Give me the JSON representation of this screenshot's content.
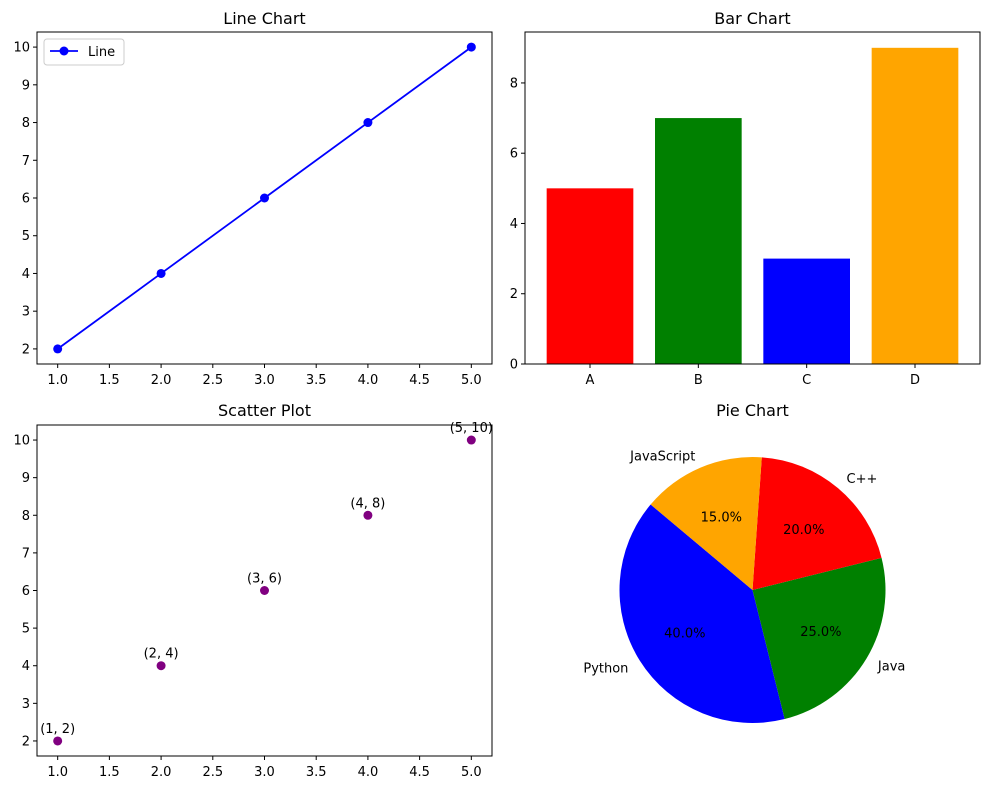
{
  "chart_data": [
    {
      "type": "line",
      "title": "Line Chart",
      "x": [
        1,
        2,
        3,
        4,
        5
      ],
      "series": [
        {
          "name": "Line",
          "values": [
            2,
            4,
            6,
            8,
            10
          ],
          "color": "#0000ff",
          "marker": "circle"
        }
      ],
      "xlabel": "",
      "ylabel": "",
      "xlim": [
        0.8,
        5.2
      ],
      "ylim": [
        1.6,
        10.4
      ],
      "xticks": [
        "1.0",
        "1.5",
        "2.0",
        "2.5",
        "3.0",
        "3.5",
        "4.0",
        "4.5",
        "5.0"
      ],
      "yticks": [
        "2",
        "3",
        "4",
        "5",
        "6",
        "7",
        "8",
        "9",
        "10"
      ],
      "legend": "upper-left",
      "grid": false
    },
    {
      "type": "bar",
      "title": "Bar Chart",
      "categories": [
        "A",
        "B",
        "C",
        "D"
      ],
      "values": [
        5,
        7,
        3,
        9
      ],
      "colors": [
        "#ff0000",
        "#008000",
        "#0000ff",
        "#ffa500"
      ],
      "xlabel": "",
      "ylabel": "",
      "ylim": [
        0,
        9.45
      ],
      "yticks": [
        "0",
        "2",
        "4",
        "6",
        "8"
      ],
      "grid": false
    },
    {
      "type": "scatter",
      "title": "Scatter Plot",
      "x": [
        1,
        2,
        3,
        4,
        5
      ],
      "y": [
        2,
        4,
        6,
        8,
        10
      ],
      "point_labels": [
        "(1, 2)",
        "(2, 4)",
        "(3, 6)",
        "(4, 8)",
        "(5, 10)"
      ],
      "color": "#800080",
      "xlabel": "",
      "ylabel": "",
      "xlim": [
        0.8,
        5.2
      ],
      "ylim": [
        1.6,
        10.4
      ],
      "xticks": [
        "1.0",
        "1.5",
        "2.0",
        "2.5",
        "3.0",
        "3.5",
        "4.0",
        "4.5",
        "5.0"
      ],
      "yticks": [
        "2",
        "3",
        "4",
        "5",
        "6",
        "7",
        "8",
        "9",
        "10"
      ],
      "grid": false
    },
    {
      "type": "pie",
      "title": "Pie Chart",
      "labels": [
        "Python",
        "Java",
        "C++",
        "JavaScript"
      ],
      "values": [
        40,
        25,
        20,
        15
      ],
      "pct_labels": [
        "40.0%",
        "25.0%",
        "20.0%",
        "15.0%"
      ],
      "colors": [
        "#0000ff",
        "#008000",
        "#ff0000",
        "#ffa500"
      ],
      "start_angle_deg": 140,
      "direction": "counterclockwise"
    }
  ]
}
